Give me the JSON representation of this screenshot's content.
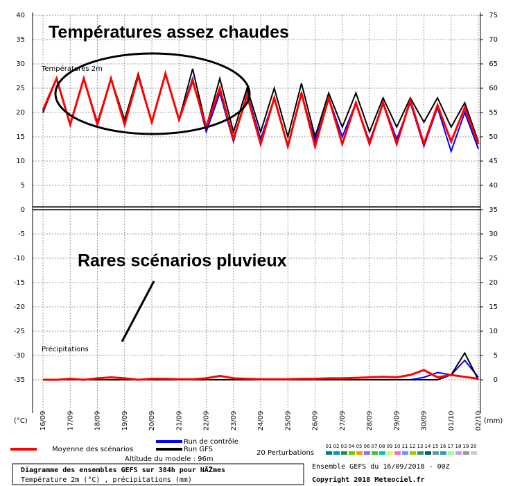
{
  "chart_data": [
    {
      "type": "line",
      "annotations": [
        "Températures assez chaudes",
        "Températures 2m"
      ],
      "categories": [
        "16/09",
        null,
        "17/09",
        null,
        "18/09",
        null,
        "19/09",
        null,
        "20/09",
        null,
        "21/09",
        null,
        "22/09",
        null,
        "23/09",
        null,
        "24/09",
        null,
        "25/09",
        null,
        "26/09",
        null,
        "27/09",
        null,
        "28/09",
        null,
        "29/09",
        null,
        "30/09",
        null,
        "01/10",
        null,
        "02/10"
      ],
      "ylim": [
        0,
        40
      ],
      "yticks": [
        0,
        5,
        10,
        15,
        20,
        25,
        30,
        35,
        40
      ],
      "y2lim": [
        35,
        75
      ],
      "y2ticks": [
        35,
        40,
        45,
        50,
        55,
        60,
        65,
        70,
        75
      ],
      "grid": true,
      "series": [
        {
          "name": "Run de contrôle",
          "color": "#0000ff",
          "values": [
            20,
            27,
            17.5,
            27,
            17.5,
            27,
            17.5,
            27.5,
            18,
            28,
            18.5,
            27,
            16,
            24,
            14,
            24,
            14.5,
            23,
            13,
            24,
            14,
            23,
            15,
            22,
            14,
            22,
            14.5,
            22,
            13,
            21,
            12,
            20,
            12.5
          ]
        },
        {
          "name": "Run GFS",
          "color": "#000000",
          "values": [
            20,
            27,
            17.5,
            27,
            18,
            27,
            18.5,
            28,
            18,
            28,
            18.5,
            29,
            17,
            27,
            16,
            25,
            16,
            25,
            15,
            26,
            15,
            24,
            17,
            24,
            16,
            23,
            17,
            23,
            18,
            23,
            17,
            22,
            14
          ]
        },
        {
          "name": "Moyenne des scénarios",
          "color": "#ff0000",
          "values": [
            20.5,
            27,
            17.5,
            27,
            17.5,
            27,
            17.5,
            27.5,
            18,
            28,
            18.5,
            26.5,
            17,
            25,
            14.5,
            23.5,
            13.5,
            23,
            13,
            24,
            13,
            23,
            13.5,
            22,
            13.5,
            22,
            13.5,
            22.5,
            13.5,
            21.5,
            14,
            21,
            13.5
          ]
        }
      ]
    },
    {
      "type": "line",
      "annotations": [
        "Rares scénarios pluvieux",
        "Précipitations"
      ],
      "ylim": [
        -35,
        0
      ],
      "yticks": [
        -35,
        -30,
        -25,
        -20,
        -15,
        -10,
        -5
      ],
      "y2lim": [
        0,
        35
      ],
      "y2ticks": [
        0,
        5,
        10,
        15,
        20,
        25,
        30
      ],
      "grid": true,
      "series": [
        {
          "name": "Run de contrôle",
          "color": "#0000ff",
          "axis": "y2",
          "values": [
            0,
            0,
            0,
            0,
            0,
            0,
            0,
            0,
            0,
            0,
            0,
            0,
            0,
            0,
            0,
            0,
            0,
            0,
            0,
            0,
            0,
            0,
            0,
            0,
            0,
            0,
            0,
            0,
            0.5,
            1.5,
            1,
            4,
            0.5
          ]
        },
        {
          "name": "Run GFS",
          "color": "#000000",
          "axis": "y2",
          "values": [
            0,
            0,
            0,
            0,
            0,
            0,
            0,
            0,
            0,
            0,
            0,
            0,
            0,
            0,
            0,
            0,
            0,
            0,
            0,
            0,
            0,
            0,
            0,
            0,
            0,
            0,
            0,
            0,
            0,
            0,
            1,
            5.5,
            0
          ]
        },
        {
          "name": "Moyenne des scénarios",
          "color": "#ff0000",
          "axis": "y2",
          "values": [
            0,
            0,
            0.2,
            0,
            0.3,
            0.5,
            0.3,
            0,
            0.2,
            0.2,
            0.1,
            0.1,
            0.3,
            0.8,
            0.3,
            0.2,
            0.1,
            0.1,
            0.1,
            0.2,
            0.2,
            0.3,
            0.3,
            0.4,
            0.5,
            0.6,
            0.5,
            1,
            2,
            0.5,
            1,
            0.6,
            0.2
          ]
        }
      ]
    }
  ],
  "units": {
    "left": "(°C)",
    "right": "(mm)"
  },
  "legend": {
    "perturbations_title": "20 Perturbations",
    "altitude": "Altitude du modele : 96m",
    "perturbations": [
      {
        "label": "01",
        "color": "#008080"
      },
      {
        "label": "02",
        "color": "#00a0a0"
      },
      {
        "label": "03",
        "color": "#2e8b57"
      },
      {
        "label": "04",
        "color": "#66cc00"
      },
      {
        "label": "05",
        "color": "#ff9900"
      },
      {
        "label": "06",
        "color": "#9966ff"
      },
      {
        "label": "07",
        "color": "#33cc33"
      },
      {
        "label": "08",
        "color": "#00cc99"
      },
      {
        "label": "09",
        "color": "#ccff66"
      },
      {
        "label": "10",
        "color": "#ff66cc"
      },
      {
        "label": "11",
        "color": "#6699ff"
      },
      {
        "label": "12",
        "color": "#99cc00"
      },
      {
        "label": "13",
        "color": "#339966"
      },
      {
        "label": "14",
        "color": "#006666"
      },
      {
        "label": "15",
        "color": "#669999"
      },
      {
        "label": "16",
        "color": "#3399cc"
      },
      {
        "label": "17",
        "color": "#99ff99"
      },
      {
        "label": "18",
        "color": "#cc99ff"
      },
      {
        "label": "19",
        "color": "#999999"
      },
      {
        "label": "20",
        "color": "#cccccc"
      }
    ]
  },
  "footer": {
    "title": "Diagramme des ensembles GEFS sur 384h pour NÃŽmes",
    "subtitle": "Température 2m (°C) , précipitations (mm)",
    "run": "Ensemble GEFS du 16/09/2018 - 00Z",
    "copyright": "Copyright 2018 Meteociel.fr"
  }
}
